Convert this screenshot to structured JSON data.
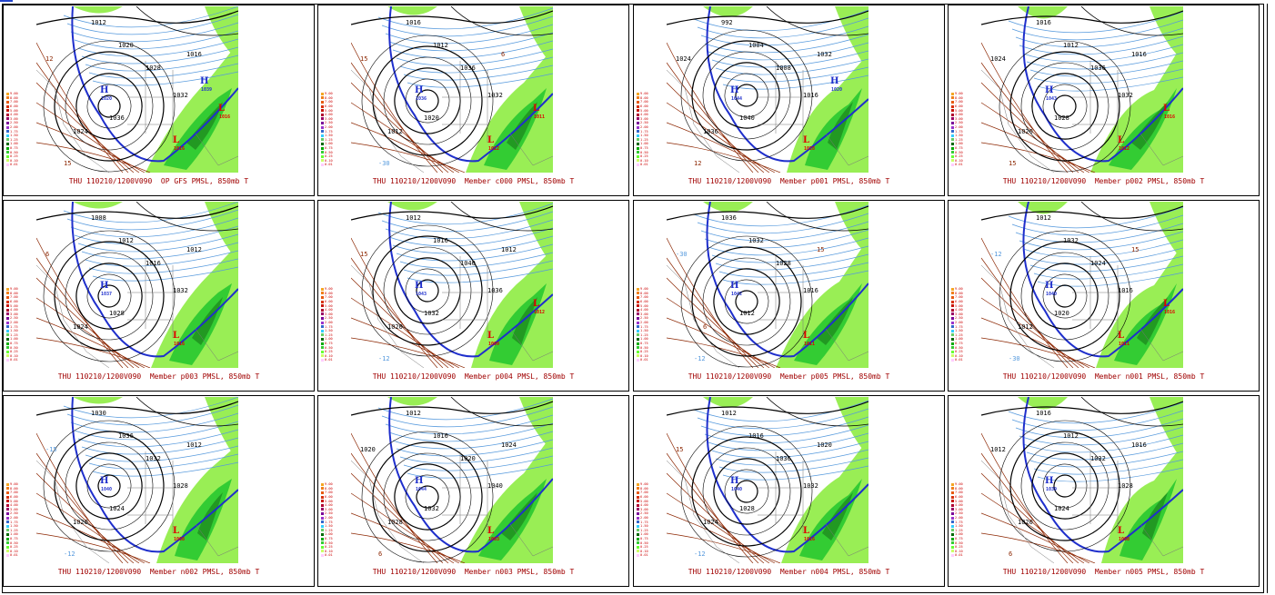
{
  "legend": {
    "values": [
      "9.00",
      "8.00",
      "7.00",
      "6.00",
      "5.00",
      "4.00",
      "3.00",
      "2.50",
      "2.00",
      "1.75",
      "1.50",
      "1.25",
      "1.00",
      "0.75",
      "0.50",
      "0.25",
      "0.10",
      "0.01"
    ],
    "colors": [
      "#f5a623",
      "#f07e1a",
      "#e85a12",
      "#d9320e",
      "#c8140a",
      "#b00030",
      "#990066",
      "#7a0099",
      "#9933cc",
      "#3366cc",
      "#33ccff",
      "#66cc66",
      "#006600",
      "#00aa00",
      "#33cc33",
      "#66ff33",
      "#ccff66",
      "#ffccff"
    ]
  },
  "colors": {
    "precip_light": "#99ee55",
    "precip_mid": "#33cc33",
    "precip_dark": "#229922",
    "isobar": "#000000",
    "isotherm_cold": "#5599dd",
    "isotherm_warm": "#8b2500",
    "freezing_line": "#1f2fcc",
    "high_label": "#1f2fcc",
    "low_label": "#dd0000",
    "caption": "#a00000"
  },
  "panels": [
    {
      "caption": "THU 110210/1200V090  OP GFS PMSL, 850mb T",
      "labels": [
        "1012",
        "1020",
        "1028",
        "1032",
        "1036",
        "1024",
        "1016",
        "12",
        "15"
      ],
      "lows": [
        "1016",
        "1016"
      ],
      "highs": [
        "1020",
        "1039"
      ]
    },
    {
      "caption": "THU 110210/1200V090  Member c000 PMSL, 850mb T",
      "labels": [
        "1016",
        "1012",
        "1036",
        "1032",
        "1020",
        "1012",
        "6",
        "15",
        "-30"
      ],
      "lows": [
        "1012",
        "1011"
      ],
      "highs": [
        "1036"
      ]
    },
    {
      "caption": "THU 110210/1200V090  Member p001 PMSL, 850mb T",
      "labels": [
        "992",
        "1004",
        "1008",
        "1016",
        "1040",
        "1036",
        "1032",
        "1024",
        "12"
      ],
      "lows": [
        "1028"
      ],
      "highs": [
        "1044",
        "1020"
      ]
    },
    {
      "caption": "THU 110210/1200V090  Member p002 PMSL, 850mb T",
      "labels": [
        "1016",
        "1012",
        "1036",
        "1032",
        "1028",
        "1020",
        "1016",
        "1024",
        "15"
      ],
      "lows": [
        "1012",
        "1016"
      ],
      "highs": [
        "1043"
      ]
    },
    {
      "caption": "THU 110210/1200V090  Member p003 PMSL, 850mb T",
      "labels": [
        "1008",
        "1012",
        "1016",
        "1032",
        "1028",
        "1024",
        "1012",
        "6"
      ],
      "lows": [
        "1016"
      ],
      "highs": [
        "1037"
      ]
    },
    {
      "caption": "THU 110210/1200V090  Member p004 PMSL, 850mb T",
      "labels": [
        "1012",
        "1016",
        "1040",
        "1036",
        "1032",
        "1020",
        "1012",
        "15",
        "-12"
      ],
      "lows": [
        "1009",
        "1012"
      ],
      "highs": [
        "1043"
      ]
    },
    {
      "caption": "THU 110210/1200V090  Member p005 PMSL, 850mb T",
      "labels": [
        "1036",
        "1032",
        "1028",
        "1016",
        "1012",
        "6",
        "15",
        "-30",
        "-12"
      ],
      "lows": [
        "1011"
      ],
      "highs": [
        "1042"
      ]
    },
    {
      "caption": "THU 110210/1200V090  Member n001 PMSL, 850mb T",
      "labels": [
        "1012",
        "1032",
        "1024",
        "1016",
        "1020",
        "1012",
        "15",
        "-12",
        "-30"
      ],
      "lows": [
        "1011",
        "1016"
      ],
      "highs": [
        "1040"
      ]
    },
    {
      "caption": "THU 110210/1200V090  Member n002 PMSL, 850mb T",
      "labels": [
        "1030",
        "1036",
        "1032",
        "1028",
        "1024",
        "1020",
        "1012",
        "-15",
        "-12"
      ],
      "lows": [
        "1008"
      ],
      "highs": [
        "1040"
      ]
    },
    {
      "caption": "THU 110210/1200V090  Member n003 PMSL, 850mb T",
      "labels": [
        "1012",
        "1016",
        "1020",
        "1040",
        "1032",
        "1028",
        "1024",
        "1020",
        "6"
      ],
      "lows": [
        "1003"
      ],
      "highs": [
        "1044"
      ]
    },
    {
      "caption": "THU 110210/1200V090  Member n004 PMSL, 850mb T",
      "labels": [
        "1012",
        "1016",
        "1036",
        "1032",
        "1028",
        "1024",
        "1020",
        "15",
        "-12"
      ],
      "lows": [
        "1016"
      ],
      "highs": [
        "1040"
      ]
    },
    {
      "caption": "THU 110210/1200V090  Member n005 PMSL, 850mb T",
      "labels": [
        "1016",
        "1012",
        "1032",
        "1028",
        "1024",
        "1020",
        "1016",
        "1012",
        "6"
      ],
      "lows": [
        "1008"
      ],
      "highs": [
        "1039"
      ]
    }
  ]
}
